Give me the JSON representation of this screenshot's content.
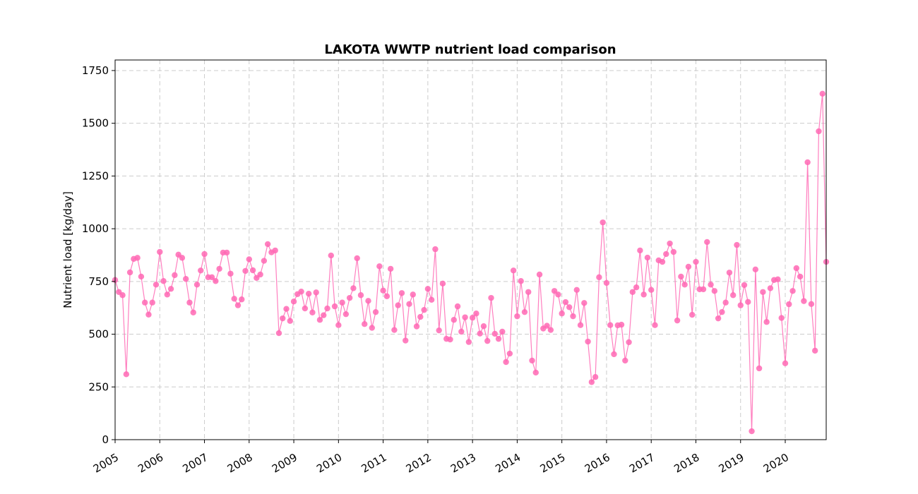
{
  "chart_data": {
    "type": "line",
    "title": "LAKOTA WWTP nutrient load comparison",
    "xlabel": "",
    "ylabel": "Nutrient load [kg/day]",
    "ylim": [
      0,
      1800
    ],
    "xlim": [
      "2005-01",
      "2020-12"
    ],
    "yticks": [
      0,
      250,
      500,
      750,
      1000,
      1250,
      1500,
      1750
    ],
    "xticks": [
      "2005",
      "2006",
      "2007",
      "2008",
      "2009",
      "2010",
      "2011",
      "2012",
      "2013",
      "2014",
      "2015",
      "2016",
      "2017",
      "2018",
      "2019",
      "2020"
    ],
    "grid": true,
    "legend": "none",
    "series": [
      {
        "color": "#ff69b4",
        "marker": "circle",
        "x_start": "2005-01",
        "frequency": "monthly",
        "values": [
          757,
          700,
          685,
          310,
          793,
          857,
          862,
          773,
          650,
          593,
          650,
          735,
          890,
          752,
          688,
          715,
          780,
          877,
          862,
          762,
          650,
          603,
          735,
          802,
          880,
          770,
          770,
          752,
          810,
          887,
          887,
          787,
          668,
          637,
          665,
          800,
          855,
          803,
          767,
          783,
          848,
          927,
          888,
          897,
          505,
          575,
          620,
          563,
          655,
          690,
          702,
          622,
          692,
          603,
          698,
          568,
          590,
          622,
          873,
          632,
          543,
          650,
          595,
          672,
          718,
          860,
          685,
          548,
          658,
          530,
          605,
          822,
          707,
          680,
          810,
          520,
          637,
          695,
          470,
          643,
          688,
          537,
          582,
          615,
          715,
          663,
          903,
          518,
          740,
          478,
          475,
          568,
          632,
          512,
          580,
          463,
          578,
          598,
          503,
          538,
          468,
          672,
          502,
          478,
          512,
          368,
          408,
          802,
          585,
          752,
          605,
          700,
          375,
          318,
          783,
          527,
          540,
          520,
          705,
          688,
          598,
          652,
          628,
          585,
          710,
          543,
          648,
          465,
          273,
          297,
          770,
          1030,
          743,
          543,
          405,
          542,
          545,
          375,
          462,
          700,
          722,
          897,
          688,
          863,
          710,
          543,
          850,
          843,
          880,
          930,
          890,
          565,
          773,
          735,
          820,
          592,
          843,
          713,
          713,
          937,
          735,
          705,
          575,
          605,
          650,
          792,
          685,
          923,
          637,
          733,
          653,
          40,
          807,
          338,
          700,
          558,
          718,
          757,
          760,
          577,
          362,
          642,
          705,
          813,
          773,
          657,
          1315,
          643,
          422,
          1462,
          1640,
          843
        ]
      }
    ]
  }
}
